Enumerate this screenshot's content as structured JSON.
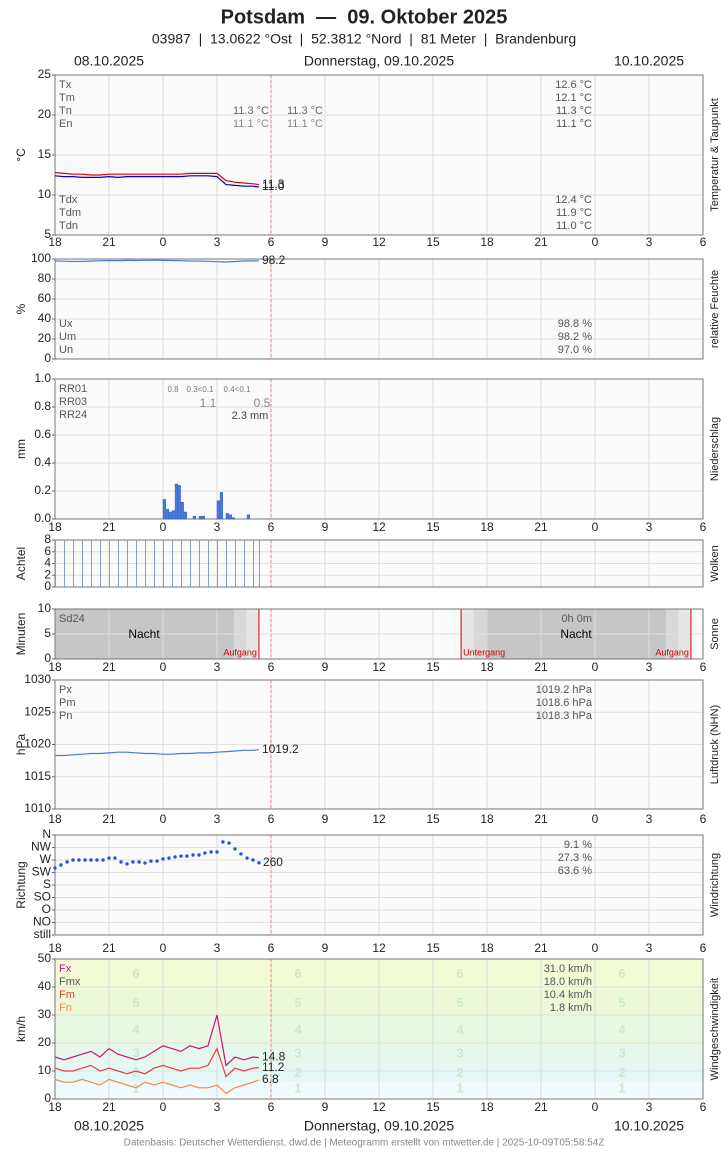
{
  "header": {
    "title": "Potsdam  —  09. Oktober 2025",
    "subtitle": "03987  |  13.0622 °Ost  |  52.3812 °Nord  |  81 Meter  |  Brandenburg",
    "dates": [
      "08.10.2025",
      "Donnerstag, 09.10.2025",
      "10.10.2025"
    ]
  },
  "footer": "Datenbasis: Deutscher Wetterdienst, dwd.de | Meteogramm erstellt von mtwetter.de | 2025-10-09T05:58:54Z",
  "chart_data": [
    {
      "type": "line",
      "side_label": "Temperatur & Taupunkt",
      "ylabel": "°C",
      "ylim": [
        5,
        25
      ],
      "yticks": [
        5,
        10,
        15,
        20,
        25
      ],
      "xlim": [
        0,
        36
      ],
      "xticks": [
        {
          "value": 0,
          "label": "18"
        },
        {
          "value": 3,
          "label": "21"
        },
        {
          "value": 6,
          "label": "0"
        },
        {
          "value": 9,
          "label": "3"
        },
        {
          "value": 12,
          "label": "6"
        },
        {
          "value": 15,
          "label": "9"
        },
        {
          "value": 18,
          "label": "12"
        },
        {
          "value": 21,
          "label": "15"
        },
        {
          "value": 24,
          "label": "18"
        },
        {
          "value": 27,
          "label": "21"
        },
        {
          "value": 30,
          "label": "0"
        },
        {
          "value": 33,
          "label": "3"
        },
        {
          "value": 36,
          "label": "6"
        }
      ],
      "x": [
        0,
        0.5,
        1,
        1.5,
        2,
        2.5,
        3,
        3.5,
        4,
        4.5,
        5,
        5.5,
        6,
        6.5,
        7,
        7.5,
        8,
        8.5,
        9,
        9.5,
        10,
        10.5,
        11,
        11.33
      ],
      "series": [
        {
          "color": "#e00000",
          "values": [
            12.8,
            12.7,
            12.6,
            12.6,
            12.5,
            12.5,
            12.6,
            12.6,
            12.6,
            12.6,
            12.6,
            12.6,
            12.6,
            12.6,
            12.6,
            12.7,
            12.7,
            12.7,
            12.7,
            11.8,
            11.6,
            11.5,
            11.4,
            11.3
          ],
          "end_label": "11.3"
        },
        {
          "color": "#0000c8",
          "values": [
            12.4,
            12.3,
            12.3,
            12.2,
            12.2,
            12.2,
            12.3,
            12.2,
            12.3,
            12.3,
            12.3,
            12.3,
            12.3,
            12.3,
            12.3,
            12.4,
            12.4,
            12.4,
            12.3,
            11.3,
            11.2,
            11.1,
            11.1,
            11.0
          ],
          "end_label": "11.0"
        }
      ],
      "stats_top": [
        {
          "label": "Tx",
          "text": "12.6 °C"
        },
        {
          "label": "Tm",
          "text": "12.1 °C"
        },
        {
          "label": "Tn",
          "text": "11.3 °C"
        },
        {
          "label": "En",
          "text": "11.1 °C"
        }
      ],
      "stats_bottom": [
        {
          "label": "Tdx",
          "text": "12.4 °C"
        },
        {
          "label": "Tdm",
          "text": "11.9 °C"
        },
        {
          "label": "Tdn",
          "text": "11.0 °C"
        }
      ],
      "notes": [
        "11.3 °C",
        "11.3 °C",
        "11.1 °C",
        "11.1 °C"
      ]
    },
    {
      "type": "line",
      "side_label": "relative Feuchte",
      "ylabel": "%",
      "ylim": [
        0,
        100
      ],
      "yticks": [
        0,
        20,
        40,
        60,
        80,
        100
      ],
      "xlim": [
        0,
        36
      ],
      "x": [
        0,
        0.5,
        1,
        1.5,
        2,
        2.5,
        3,
        3.5,
        4,
        4.5,
        5,
        5.5,
        6,
        6.5,
        7,
        7.5,
        8,
        8.5,
        9,
        9.5,
        10,
        10.5,
        11,
        11.33
      ],
      "series": [
        {
          "color": "#4a7bd8",
          "values": [
            98.0,
            97.8,
            97.5,
            97.6,
            97.9,
            98.3,
            98.5,
            98.4,
            98.6,
            98.5,
            98.7,
            98.8,
            98.6,
            98.5,
            98.3,
            98.0,
            97.9,
            97.7,
            97.3,
            97.0,
            97.5,
            98.0,
            98.1,
            98.2
          ],
          "end_label": "98.2"
        }
      ],
      "stats_bottom": [
        {
          "label": "Ux",
          "text": "98.8 %"
        },
        {
          "label": "Um",
          "text": "98.2 %"
        },
        {
          "label": "Un",
          "text": "97.0 %"
        }
      ]
    },
    {
      "type": "bar",
      "side_label": "Niederschlag",
      "ylabel": "mm",
      "ylim": [
        0,
        1
      ],
      "yticks": [
        {
          "value": 0,
          "label": "0.0"
        },
        0.2,
        0.4,
        0.6,
        0.8,
        {
          "value": 1,
          "label": "1.0"
        }
      ],
      "xlim": [
        0,
        36
      ],
      "xticks": [
        {
          "value": 0,
          "label": "18"
        },
        {
          "value": 3,
          "label": "21"
        },
        {
          "value": 6,
          "label": "0"
        },
        {
          "value": 9,
          "label": "3"
        },
        {
          "value": 12,
          "label": "6"
        },
        {
          "value": 15,
          "label": "9"
        },
        {
          "value": 18,
          "label": "12"
        },
        {
          "value": 21,
          "label": "15"
        },
        {
          "value": 24,
          "label": "18"
        },
        {
          "value": 27,
          "label": "21"
        },
        {
          "value": 30,
          "label": "0"
        },
        {
          "value": 33,
          "label": "3"
        },
        {
          "value": 36,
          "label": "6"
        }
      ],
      "x": [
        6.0,
        6.17,
        6.33,
        6.5,
        6.67,
        6.83,
        7.0,
        7.17,
        7.67,
        8.0,
        8.17,
        9.0,
        9.17,
        9.5,
        9.67,
        9.83,
        10.67
      ],
      "bar_hours": 0.17,
      "color": "#4a7be0",
      "values": [
        0.14,
        0.07,
        0.05,
        0.06,
        0.25,
        0.24,
        0.12,
        0.05,
        0.02,
        0.02,
        0.02,
        0.13,
        0.19,
        0.04,
        0.03,
        0.01,
        0.03
      ],
      "stats_top": [
        {
          "label": "RR01"
        },
        {
          "label": "RR03"
        },
        {
          "label": "RR24"
        }
      ],
      "notes": [
        "0.8",
        "0.3<0.1",
        "0.4<0.1",
        "1.1",
        "0.5",
        "2.3 mm"
      ]
    },
    {
      "type": "bar",
      "side_label": "Wolken",
      "ylabel": "Achtel",
      "ylim": [
        0,
        8
      ],
      "yticks": [
        0,
        2,
        4,
        6,
        8
      ],
      "xlim": [
        0,
        36
      ],
      "x": [
        0,
        0.5,
        1,
        1.5,
        2,
        2.5,
        3,
        3.5,
        4,
        4.5,
        5,
        5.5,
        6,
        6.5,
        7,
        7.5,
        8,
        8.5,
        9,
        9.5,
        10,
        10.5,
        11,
        11.33
      ],
      "bar_hours": 0.06,
      "color": "#8a9cc0",
      "values": [
        8,
        8,
        8,
        8,
        8,
        8,
        8,
        8,
        8,
        8,
        8,
        8,
        8,
        8,
        8,
        8,
        8,
        8,
        8,
        8,
        8,
        8,
        8,
        8
      ]
    },
    {
      "type": "events",
      "side_label": "Sonne",
      "ylabel": "Minuten",
      "ylim": [
        0,
        10
      ],
      "yticks": [
        0,
        5,
        10
      ],
      "xlim": [
        0,
        36
      ],
      "xticks": [
        {
          "value": 0,
          "label": "18"
        },
        {
          "value": 3,
          "label": "21"
        },
        {
          "value": 6,
          "label": "0"
        },
        {
          "value": 9,
          "label": "3"
        },
        {
          "value": 12,
          "label": "6"
        },
        {
          "value": 15,
          "label": "9"
        },
        {
          "value": 18,
          "label": "12"
        },
        {
          "value": 21,
          "label": "15"
        },
        {
          "value": 24,
          "label": "18"
        },
        {
          "value": 27,
          "label": "21"
        },
        {
          "value": 30,
          "label": "0"
        },
        {
          "value": 33,
          "label": "3"
        },
        {
          "value": 36,
          "label": "6"
        }
      ],
      "events": [
        {
          "label": "Aufgang",
          "x": 11.33
        },
        {
          "label": "Untergang",
          "x": 22.56
        },
        {
          "label": "Aufgang",
          "x": 35.33
        }
      ],
      "stats_top": [
        {
          "label": "Sd24",
          "text": "0h 0m"
        }
      ],
      "notes": [
        "Nacht",
        "Nacht"
      ]
    },
    {
      "type": "line",
      "side_label": "Luftdruck (NHN)",
      "ylabel": "hPa",
      "ylim": [
        1010,
        1030
      ],
      "yticks": [
        1010,
        1015,
        1020,
        1025,
        1030
      ],
      "xlim": [
        0,
        36
      ],
      "xticks": [
        {
          "value": 0,
          "label": "18"
        },
        {
          "value": 3,
          "label": "21"
        },
        {
          "value": 6,
          "label": "0"
        },
        {
          "value": 9,
          "label": "3"
        },
        {
          "value": 12,
          "label": "6"
        },
        {
          "value": 15,
          "label": "9"
        },
        {
          "value": 18,
          "label": "12"
        },
        {
          "value": 21,
          "label": "15"
        },
        {
          "value": 24,
          "label": "18"
        },
        {
          "value": 27,
          "label": "21"
        },
        {
          "value": 30,
          "label": "0"
        },
        {
          "value": 33,
          "label": "3"
        },
        {
          "value": 36,
          "label": "6"
        }
      ],
      "x": [
        0,
        0.5,
        1,
        1.5,
        2,
        2.5,
        3,
        3.5,
        4,
        4.5,
        5,
        5.5,
        6,
        6.5,
        7,
        7.5,
        8,
        8.5,
        9,
        9.5,
        10,
        10.5,
        11,
        11.33
      ],
      "series": [
        {
          "color": "#4a7bd8",
          "values": [
            1018.3,
            1018.3,
            1018.4,
            1018.5,
            1018.6,
            1018.6,
            1018.7,
            1018.8,
            1018.8,
            1018.7,
            1018.6,
            1018.6,
            1018.5,
            1018.5,
            1018.6,
            1018.6,
            1018.7,
            1018.7,
            1018.8,
            1018.9,
            1019.0,
            1019.1,
            1019.1,
            1019.2
          ],
          "end_label": "1019.2"
        }
      ],
      "stats_top": [
        {
          "label": "Px",
          "text": "1019.2 hPa"
        },
        {
          "label": "Pm",
          "text": "1018.6 hPa"
        },
        {
          "label": "Pn",
          "text": "1018.3 hPa"
        }
      ]
    },
    {
      "type": "scatter",
      "side_label": "Windrichtung",
      "ylabel": "Richtung",
      "ylim": [
        0,
        360
      ],
      "yticks": [
        {
          "value": 0,
          "label": "still"
        },
        {
          "value": 45,
          "label": "NO"
        },
        {
          "value": 90,
          "label": "O"
        },
        {
          "value": 135,
          "label": "SO"
        },
        {
          "value": 180,
          "label": "S"
        },
        {
          "value": 225,
          "label": "SW"
        },
        {
          "value": 270,
          "label": "W"
        },
        {
          "value": 315,
          "label": "NW"
        },
        {
          "value": 360,
          "label": "N"
        }
      ],
      "xlim": [
        0,
        36
      ],
      "xticks": [
        {
          "value": 0,
          "label": "18"
        },
        {
          "value": 3,
          "label": "21"
        },
        {
          "value": 6,
          "label": "0"
        },
        {
          "value": 9,
          "label": "3"
        },
        {
          "value": 12,
          "label": "6"
        },
        {
          "value": 15,
          "label": "9"
        },
        {
          "value": 18,
          "label": "12"
        },
        {
          "value": 21,
          "label": "15"
        },
        {
          "value": 24,
          "label": "18"
        },
        {
          "value": 27,
          "label": "21"
        },
        {
          "value": 30,
          "label": "0"
        },
        {
          "value": 33,
          "label": "3"
        },
        {
          "value": 36,
          "label": "6"
        }
      ],
      "x": [
        0,
        0.33,
        0.67,
        1,
        1.33,
        1.67,
        2,
        2.33,
        2.67,
        3,
        3.33,
        3.67,
        4,
        4.33,
        4.67,
        5,
        5.33,
        5.67,
        6,
        6.33,
        6.67,
        7,
        7.33,
        7.67,
        8,
        8.33,
        8.67,
        9,
        9.33,
        9.67,
        10,
        10.33,
        10.67,
        11,
        11.33
      ],
      "series": [
        {
          "color": "#2255dd",
          "values": [
            241,
            252,
            263,
            270,
            270,
            270,
            270,
            270,
            270,
            277,
            277,
            263,
            256,
            263,
            263,
            259,
            266,
            266,
            274,
            277,
            281,
            284,
            284,
            288,
            288,
            295,
            299,
            299,
            335,
            331,
            310,
            292,
            277,
            270,
            260
          ],
          "end_label": "260"
        }
      ],
      "stats_top": [
        {
          "text": "9.1 %"
        },
        {
          "text": "27.3 %"
        },
        {
          "text": "63.6 %"
        }
      ]
    },
    {
      "type": "line",
      "side_label": "Windgeschwindigkeit",
      "ylabel": "km/h",
      "ylim": [
        0,
        50
      ],
      "yticks": [
        0,
        10,
        20,
        30,
        40,
        50
      ],
      "xlim": [
        0,
        36
      ],
      "xticks": [
        {
          "value": 0,
          "label": "18"
        },
        {
          "value": 3,
          "label": "21"
        },
        {
          "value": 6,
          "label": "0"
        },
        {
          "value": 9,
          "label": "3"
        },
        {
          "value": 12,
          "label": "6"
        },
        {
          "value": 15,
          "label": "9"
        },
        {
          "value": 18,
          "label": "12"
        },
        {
          "value": 21,
          "label": "15"
        },
        {
          "value": 24,
          "label": "18"
        },
        {
          "value": 27,
          "label": "21"
        },
        {
          "value": 30,
          "label": "0"
        },
        {
          "value": 33,
          "label": "3"
        },
        {
          "value": 36,
          "label": "6"
        }
      ],
      "bands": [
        {
          "label": "1",
          "from": 1,
          "to": 6,
          "color": "#eefafb"
        },
        {
          "label": "2",
          "from": 6,
          "to": 12,
          "color": "#e5f7f6"
        },
        {
          "label": "3",
          "from": 12,
          "to": 20,
          "color": "#e6f8ee"
        },
        {
          "label": "4",
          "from": 20,
          "to": 29,
          "color": "#e9f8e1"
        },
        {
          "label": "5",
          "from": 29,
          "to": 39,
          "color": "#edf8d9"
        },
        {
          "label": "6",
          "from": 39,
          "to": 50,
          "color": "#f2fad6"
        }
      ],
      "x": [
        0,
        0.5,
        1,
        1.5,
        2,
        2.5,
        3,
        3.5,
        4,
        4.5,
        5,
        5.5,
        6,
        6.5,
        7,
        7.5,
        8,
        8.5,
        9,
        9.5,
        10,
        10.5,
        11,
        11.33
      ],
      "series": [
        {
          "color": "#cc1177",
          "values": [
            15,
            14,
            15,
            16,
            17,
            15,
            18,
            16,
            15,
            14,
            15,
            17,
            19,
            18,
            17,
            19,
            18,
            19,
            30,
            12,
            15,
            14,
            15,
            14.8
          ],
          "end_label": "14.8"
        },
        {
          "color": "#e0403a",
          "values": [
            11,
            10,
            10,
            11,
            12,
            10,
            11,
            10,
            9,
            10,
            9,
            11,
            12,
            11,
            10,
            11,
            11,
            12,
            18,
            8,
            11,
            10,
            11,
            11.2
          ],
          "end_label": "11.2"
        },
        {
          "color": "#f08a4b",
          "values": [
            7,
            6,
            6,
            7,
            6,
            5,
            7,
            6,
            5,
            4,
            6,
            5,
            6,
            5,
            4,
            5,
            4,
            4,
            5,
            2,
            4,
            5,
            6,
            6.8
          ],
          "end_label": "6.8"
        }
      ],
      "stats_top": [
        {
          "label": "Fx",
          "text": "31.0 km/h",
          "color": "#cc1177"
        },
        {
          "label": "Fmx",
          "text": "18.0 km/h",
          "color": "#555555"
        },
        {
          "label": "Fm",
          "text": "10.4 km/h",
          "color": "#e0403a"
        },
        {
          "label": "Fn",
          "text": "1.8 km/h",
          "color": "#f08a4b"
        }
      ]
    }
  ]
}
